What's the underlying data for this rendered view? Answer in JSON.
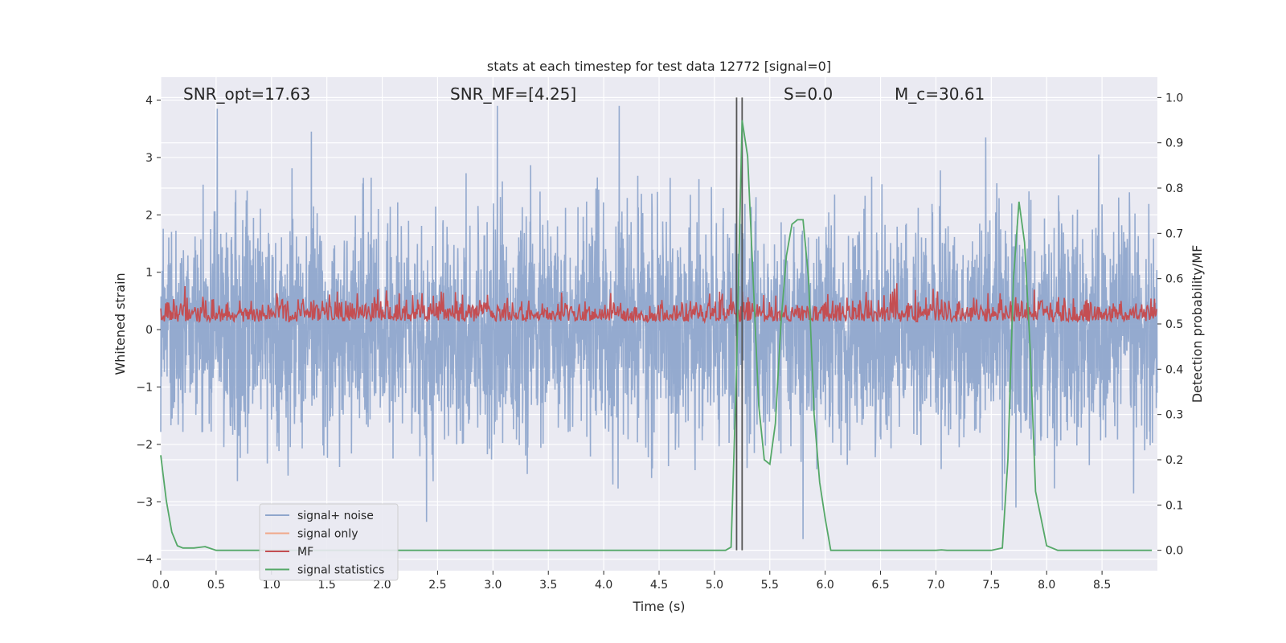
{
  "chart_data": {
    "type": "line",
    "title": "stats at each timestep for test data 12772 [signal=0]",
    "xlabel": "Time (s)",
    "ylabel_left": "Whitened strain",
    "ylabel_right": "Detection probability/MF",
    "xlim": [
      0.0,
      9.0
    ],
    "ylim_left": [
      -4.2,
      4.4
    ],
    "ylim_right": [
      -0.045,
      1.045
    ],
    "x_ticks": [
      "0.0",
      "0.5",
      "1.0",
      "1.5",
      "2.0",
      "2.5",
      "3.0",
      "3.5",
      "4.0",
      "4.5",
      "5.0",
      "5.5",
      "6.0",
      "6.5",
      "7.0",
      "7.5",
      "8.0",
      "8.5"
    ],
    "x_tick_values": [
      0,
      0.5,
      1,
      1.5,
      2,
      2.5,
      3,
      3.5,
      4,
      4.5,
      5,
      5.5,
      6,
      6.5,
      7,
      7.5,
      8,
      8.5
    ],
    "y_ticks_left": [
      "4",
      "3",
      "2",
      "1",
      "0",
      "−1",
      "−2",
      "−3",
      "−4"
    ],
    "y_tick_values_left": [
      4,
      3,
      2,
      1,
      0,
      -1,
      -2,
      -3,
      -4
    ],
    "y_ticks_right": [
      "1.0",
      "0.9",
      "0.8",
      "0.7",
      "0.6",
      "0.5",
      "0.4",
      "0.3",
      "0.2",
      "0.1",
      "0.0"
    ],
    "y_tick_values_right": [
      1.0,
      0.9,
      0.8,
      0.7,
      0.6,
      0.5,
      0.4,
      0.3,
      0.2,
      0.1,
      0.0
    ],
    "annotations": [
      {
        "name": "snr-opt",
        "text": "SNR_opt=17.63"
      },
      {
        "name": "snr-mf",
        "text": "SNR_MF=[4.25]"
      },
      {
        "name": "s-value",
        "text": "S=0.0"
      },
      {
        "name": "mc-value",
        "text": "M_c=30.61"
      }
    ],
    "legend": {
      "position": "lower-left",
      "entries": [
        {
          "label": "signal+ noise",
          "color": "#8fa6cc"
        },
        {
          "label": "signal only",
          "color": "#f0a88a"
        },
        {
          "label": "MF",
          "color": "#c44e52"
        },
        {
          "label": "signal statistics",
          "color": "#55a868"
        }
      ]
    },
    "colors": {
      "background": "#eaeaf2",
      "grid": "#ffffff",
      "noise": "#8fa6cc",
      "signal": "#f0a88a",
      "mf": "#c44e52",
      "stats": "#55a868",
      "vline": "#555555"
    },
    "series": [
      {
        "name": "signal+ noise",
        "axis": "left",
        "description": "whitened strain noise, approx gaussian with std ~1, spikes up to ~3.9 and down to ~-3.6",
        "duration_s": 9.0,
        "notable_peaks": [
          {
            "x": 0.51,
            "y": 3.85
          },
          {
            "x": 1.36,
            "y": 3.45
          },
          {
            "x": 3.04,
            "y": 3.9
          },
          {
            "x": 4.14,
            "y": 3.9
          },
          {
            "x": 7.45,
            "y": 3.35
          },
          {
            "x": 8.47,
            "y": 3.05
          },
          {
            "x": 2.4,
            "y": -3.35
          },
          {
            "x": 5.8,
            "y": -3.65
          },
          {
            "x": 7.6,
            "y": -3.15
          }
        ]
      },
      {
        "name": "MF",
        "axis": "right",
        "description": "matched filter output, fluctuating around 0.52 between ~0.49 and ~0.59"
      },
      {
        "name": "signal statistics",
        "axis": "right",
        "x": [
          0.0,
          0.05,
          0.1,
          0.15,
          0.2,
          0.3,
          0.4,
          0.5,
          1.0,
          2.0,
          3.0,
          4.0,
          5.0,
          5.1,
          5.15,
          5.2,
          5.25,
          5.3,
          5.4,
          5.45,
          5.5,
          5.55,
          5.6,
          5.65,
          5.7,
          5.75,
          5.8,
          5.85,
          5.9,
          5.95,
          6.0,
          6.05,
          6.1,
          6.5,
          7.0,
          7.05,
          7.1,
          7.5,
          7.6,
          7.65,
          7.7,
          7.75,
          7.8,
          7.85,
          7.9,
          7.95,
          8.0,
          8.1,
          8.5,
          8.95
        ],
        "y": [
          0.21,
          0.11,
          0.04,
          0.01,
          0.005,
          0.005,
          0.008,
          0.0,
          0.0,
          0.0,
          0.0,
          0.0,
          0.0,
          0.0,
          0.007,
          0.4,
          0.95,
          0.87,
          0.32,
          0.2,
          0.19,
          0.28,
          0.5,
          0.65,
          0.72,
          0.73,
          0.73,
          0.6,
          0.3,
          0.15,
          0.07,
          0.0,
          0.0,
          0.0,
          0.0,
          0.001,
          0.0,
          0.0,
          0.005,
          0.2,
          0.6,
          0.77,
          0.68,
          0.45,
          0.13,
          0.07,
          0.01,
          0.0,
          0.0,
          0.0
        ]
      }
    ],
    "vlines": [
      5.2,
      5.25
    ]
  }
}
